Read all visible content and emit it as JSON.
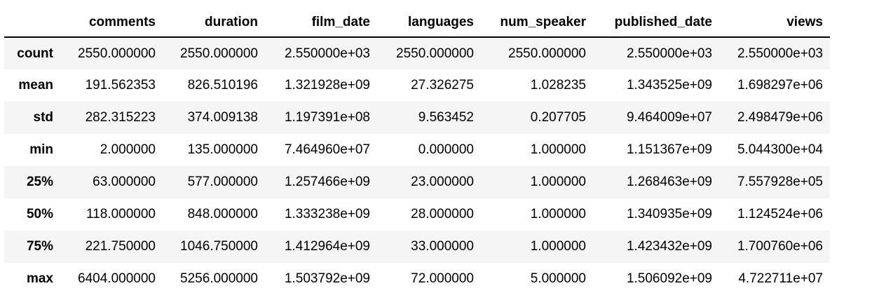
{
  "table": {
    "index_header": "",
    "columns": [
      "comments",
      "duration",
      "film_date",
      "languages",
      "num_speaker",
      "published_date",
      "views"
    ],
    "rows": [
      {
        "label": "count",
        "values": [
          "2550.000000",
          "2550.000000",
          "2.550000e+03",
          "2550.000000",
          "2550.000000",
          "2.550000e+03",
          "2.550000e+03"
        ]
      },
      {
        "label": "mean",
        "values": [
          "191.562353",
          "826.510196",
          "1.321928e+09",
          "27.326275",
          "1.028235",
          "1.343525e+09",
          "1.698297e+06"
        ]
      },
      {
        "label": "std",
        "values": [
          "282.315223",
          "374.009138",
          "1.197391e+08",
          "9.563452",
          "0.207705",
          "9.464009e+07",
          "2.498479e+06"
        ]
      },
      {
        "label": "min",
        "values": [
          "2.000000",
          "135.000000",
          "7.464960e+07",
          "0.000000",
          "1.000000",
          "1.151367e+09",
          "5.044300e+04"
        ]
      },
      {
        "label": "25%",
        "values": [
          "63.000000",
          "577.000000",
          "1.257466e+09",
          "23.000000",
          "1.000000",
          "1.268463e+09",
          "7.557928e+05"
        ]
      },
      {
        "label": "50%",
        "values": [
          "118.000000",
          "848.000000",
          "1.333238e+09",
          "28.000000",
          "1.000000",
          "1.340935e+09",
          "1.124524e+06"
        ]
      },
      {
        "label": "75%",
        "values": [
          "221.750000",
          "1046.750000",
          "1.412964e+09",
          "33.000000",
          "1.000000",
          "1.423432e+09",
          "1.700760e+06"
        ]
      },
      {
        "label": "max",
        "values": [
          "6404.000000",
          "5256.000000",
          "1.503792e+09",
          "72.000000",
          "5.000000",
          "1.506092e+09",
          "4.722711e+07"
        ]
      }
    ]
  }
}
